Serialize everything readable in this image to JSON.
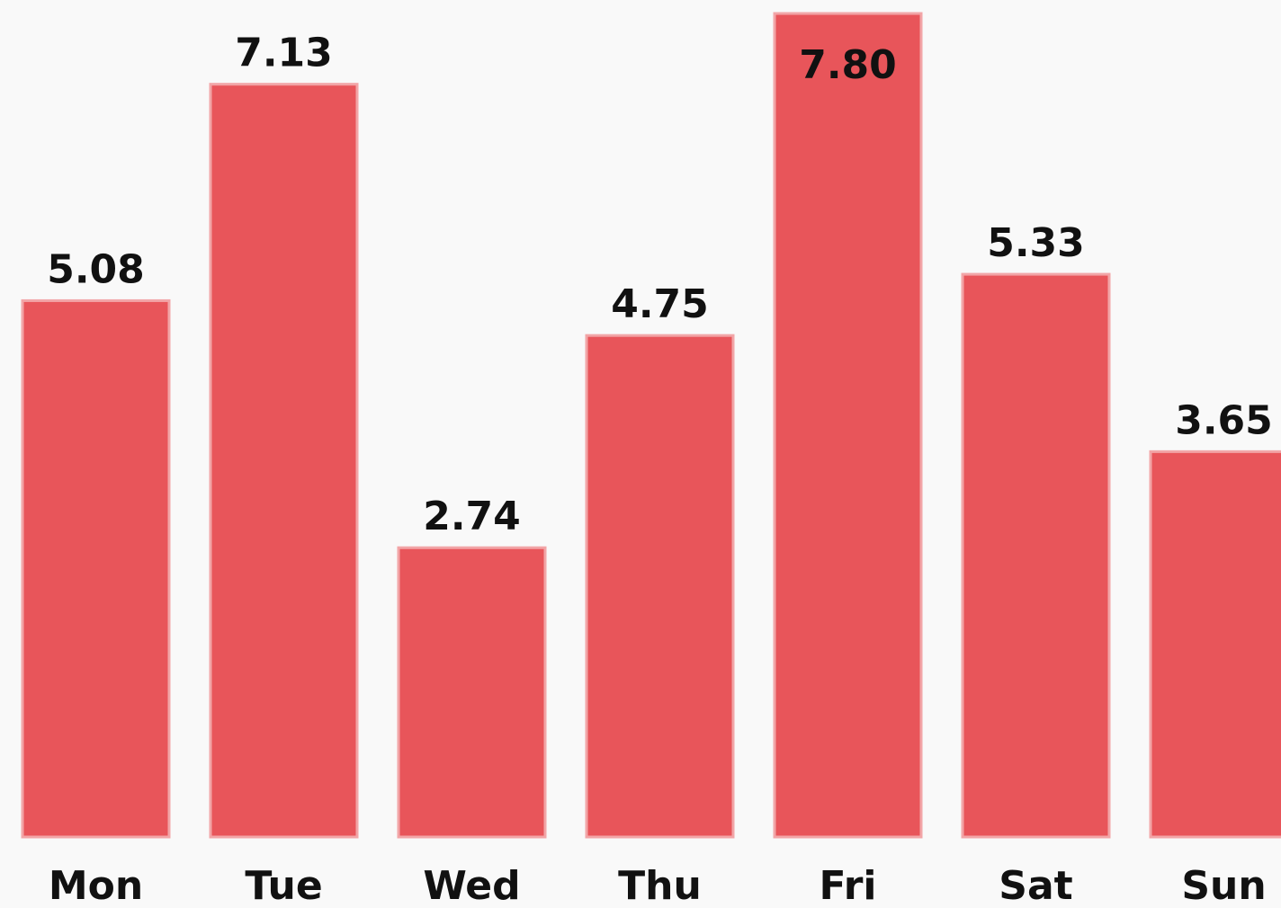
{
  "chart_data": {
    "type": "bar",
    "categories": [
      "Mon",
      "Tue",
      "Wed",
      "Thu",
      "Fri",
      "Sat",
      "Sun"
    ],
    "values": [
      5.08,
      7.13,
      2.74,
      4.75,
      7.8,
      5.33,
      3.65
    ],
    "value_labels": [
      "5.08",
      "7.13",
      "2.74",
      "4.75",
      "7.80",
      "5.33",
      "3.65"
    ],
    "color": "#e8555a"
  }
}
